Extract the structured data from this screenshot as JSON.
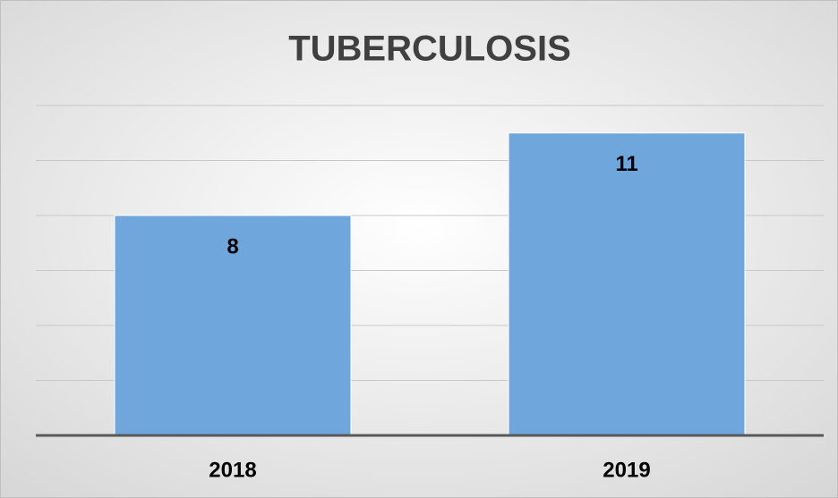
{
  "chart_data": {
    "type": "bar",
    "title": "TUBERCULOSIS",
    "categories": [
      "2018",
      "2019"
    ],
    "values": [
      8,
      11
    ],
    "color": "#6fa6db",
    "ylim": [
      0,
      12
    ],
    "yticks": [
      0,
      2,
      4,
      6,
      8,
      10,
      12
    ],
    "grid": true
  }
}
